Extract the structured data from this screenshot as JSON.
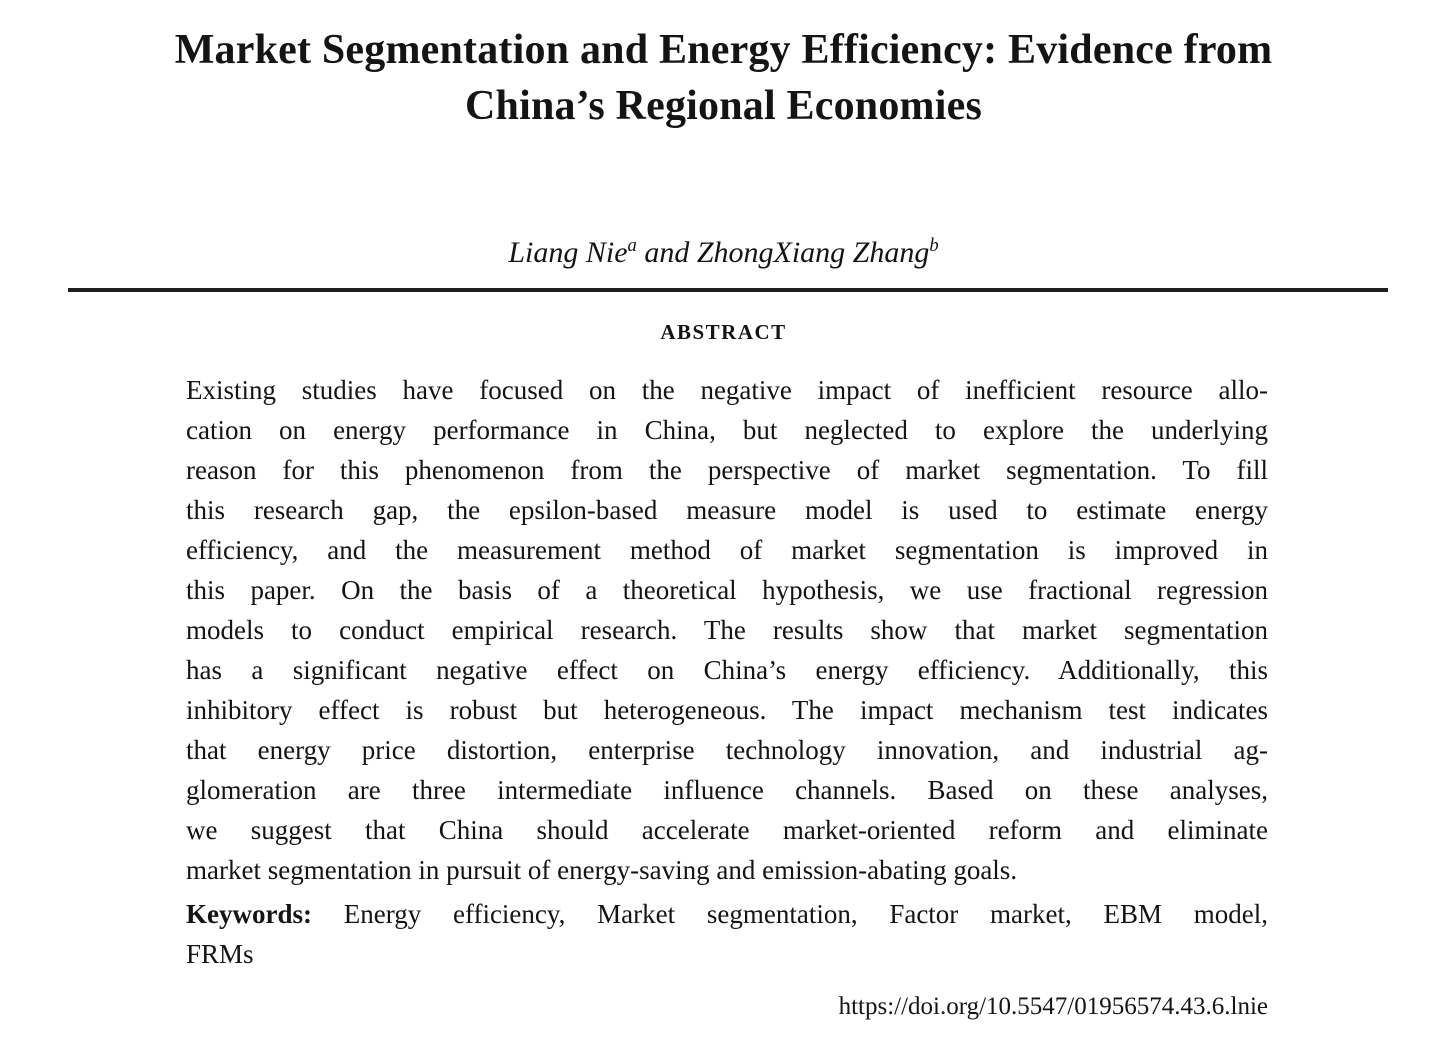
{
  "title": {
    "line1": "Market Segmentation and Energy Efficiency: Evidence from",
    "line2": "China’s Regional Economies"
  },
  "authors": {
    "name1": "Liang Nie",
    "sup1": "a",
    "connector": " and ",
    "name2": "ZhongXiang Zhang",
    "sup2": "b"
  },
  "abstract": {
    "heading": "ABSTRACT",
    "lines": [
      "Existing studies have focused on the negative impact of inefficient resource allo-",
      "cation on energy performance in China, but neglected to explore the underlying",
      "reason for this phenomenon from the perspective of market segmentation. To fill",
      "this research gap, the epsilon-based measure model is used to estimate energy",
      "efficiency, and the measurement method of market segmentation is improved in",
      "this paper. On the basis of a theoretical hypothesis, we use fractional regression",
      "models to conduct empirical research. The results show that market segmentation",
      "has a significant negative effect on China’s energy efficiency. Additionally, this",
      "inhibitory effect is robust but heterogeneous. The impact mechanism test indicates",
      "that energy price distortion, enterprise technology innovation, and industrial ag-",
      "glomeration are three intermediate influence channels. Based on these analyses,",
      "we suggest that China should accelerate market-oriented reform and eliminate",
      "market segmentation in pursuit of energy-saving and emission-abating goals."
    ]
  },
  "keywords": {
    "label": "Keywords:",
    "line1": "Energy efficiency, Market segmentation, Factor market, EBM model,",
    "line2": "FRMs"
  },
  "doi": "https://doi.org/10.5547/01956574.43.6.lnie"
}
